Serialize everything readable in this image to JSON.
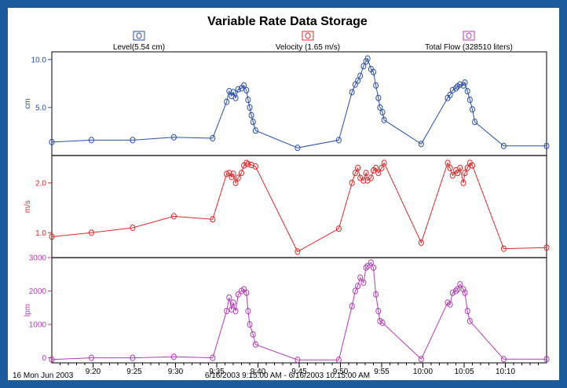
{
  "chart_data": {
    "type": "line",
    "title": "Variable Rate Data Storage",
    "x_tick_labels": [
      "9:20",
      "9:25",
      "9:30",
      "9:35",
      "9:40",
      "9:45",
      "9:50",
      "9:55",
      "10:00",
      "10:05",
      "10:10"
    ],
    "footer_left": "16 Mon Jun 2003",
    "footer_center": "6/16/2003 9:15:00 AM - 6/16/2003 10:15:00 AM",
    "grid": false,
    "panels": [
      {
        "name": "Level",
        "legend": "Level(5.54 cm)",
        "ylabel": "cm",
        "color": "#2a4ea6",
        "yticks": [
          5.0,
          10.0
        ],
        "ytick_labels": [
          "5.0",
          "10.0"
        ],
        "ylim": [
          0,
          10.8
        ],
        "points": [
          [
            15.0,
            1.4
          ],
          [
            19.8,
            1.6
          ],
          [
            24.8,
            1.6
          ],
          [
            29.8,
            1.9
          ],
          [
            34.5,
            1.8
          ],
          [
            36.2,
            5.6
          ],
          [
            36.5,
            6.7
          ],
          [
            36.8,
            6.2
          ],
          [
            37.0,
            6.6
          ],
          [
            37.3,
            6.0
          ],
          [
            37.6,
            6.9
          ],
          [
            38.0,
            7.0
          ],
          [
            38.3,
            7.3
          ],
          [
            38.6,
            6.8
          ],
          [
            38.8,
            5.8
          ],
          [
            39.0,
            5.0
          ],
          [
            39.2,
            4.2
          ],
          [
            39.4,
            3.5
          ],
          [
            39.7,
            2.6
          ],
          [
            44.8,
            0.8
          ],
          [
            49.8,
            1.6
          ],
          [
            51.4,
            6.6
          ],
          [
            51.8,
            7.4
          ],
          [
            52.1,
            7.8
          ],
          [
            52.4,
            8.3
          ],
          [
            52.8,
            9.3
          ],
          [
            53.1,
            9.8
          ],
          [
            53.3,
            10.1
          ],
          [
            53.7,
            9.0
          ],
          [
            54.0,
            8.7
          ],
          [
            54.3,
            7.3
          ],
          [
            54.6,
            6.0
          ],
          [
            54.8,
            5.0
          ],
          [
            55.1,
            4.5
          ],
          [
            55.3,
            3.7
          ],
          [
            59.8,
            1.2
          ],
          [
            63.0,
            6.0
          ],
          [
            63.3,
            6.3
          ],
          [
            63.6,
            6.8
          ],
          [
            64.0,
            7.0
          ],
          [
            64.2,
            7.2
          ],
          [
            64.5,
            7.4
          ],
          [
            64.9,
            7.3
          ],
          [
            65.1,
            7.6
          ],
          [
            65.4,
            6.7
          ],
          [
            65.7,
            5.8
          ],
          [
            66.0,
            4.8
          ],
          [
            66.3,
            3.5
          ],
          [
            69.8,
            1.0
          ],
          [
            75.0,
            1.0
          ]
        ]
      },
      {
        "name": "Velocity",
        "legend": "Velocity (1.65 m/s)",
        "ylabel": "m/s",
        "color": "#e0282a",
        "yticks": [
          1.0,
          2.0
        ],
        "ytick_labels": [
          "1.0",
          "2.0"
        ],
        "ylim": [
          0.5,
          2.55
        ],
        "points": [
          [
            15.0,
            0.92
          ],
          [
            19.8,
            1.0
          ],
          [
            24.8,
            1.1
          ],
          [
            29.8,
            1.33
          ],
          [
            34.5,
            1.27
          ],
          [
            36.2,
            2.18
          ],
          [
            36.5,
            2.2
          ],
          [
            36.8,
            2.12
          ],
          [
            37.0,
            2.18
          ],
          [
            37.3,
            2.0
          ],
          [
            37.6,
            2.1
          ],
          [
            38.0,
            2.2
          ],
          [
            38.3,
            2.35
          ],
          [
            38.6,
            2.4
          ],
          [
            38.8,
            2.38
          ],
          [
            39.2,
            2.36
          ],
          [
            39.7,
            2.33
          ],
          [
            44.8,
            0.62
          ],
          [
            49.8,
            1.08
          ],
          [
            51.4,
            2.0
          ],
          [
            51.8,
            2.2
          ],
          [
            52.1,
            2.3
          ],
          [
            52.4,
            2.1
          ],
          [
            52.8,
            2.05
          ],
          [
            53.1,
            2.2
          ],
          [
            53.3,
            2.05
          ],
          [
            53.7,
            2.1
          ],
          [
            54.0,
            2.25
          ],
          [
            54.3,
            2.3
          ],
          [
            54.6,
            2.2
          ],
          [
            55.0,
            2.3
          ],
          [
            55.3,
            2.4
          ],
          [
            59.8,
            0.8
          ],
          [
            63.0,
            2.4
          ],
          [
            63.3,
            2.3
          ],
          [
            63.6,
            2.15
          ],
          [
            64.0,
            2.25
          ],
          [
            64.2,
            2.2
          ],
          [
            64.5,
            2.3
          ],
          [
            64.9,
            2.0
          ],
          [
            65.1,
            2.2
          ],
          [
            65.4,
            2.3
          ],
          [
            65.7,
            2.4
          ],
          [
            66.0,
            2.35
          ],
          [
            69.8,
            0.68
          ],
          [
            75.0,
            0.7
          ]
        ]
      },
      {
        "name": "Total Flow",
        "legend": "Total Flow (328510 liters)",
        "ylabel": "lpm",
        "color": "#b43cb4",
        "yticks": [
          0,
          1000,
          2000,
          3000
        ],
        "ytick_labels": [
          "0",
          "1000",
          "2000",
          "3000"
        ],
        "ylim": [
          -150,
          3000
        ],
        "points": [
          [
            15.0,
            -50
          ],
          [
            19.8,
            0
          ],
          [
            24.8,
            0
          ],
          [
            29.8,
            30
          ],
          [
            34.5,
            0
          ],
          [
            36.2,
            1400
          ],
          [
            36.5,
            1800
          ],
          [
            36.8,
            1450
          ],
          [
            37.0,
            1650
          ],
          [
            37.3,
            1400
          ],
          [
            37.6,
            1900
          ],
          [
            38.0,
            2000
          ],
          [
            38.3,
            2050
          ],
          [
            38.6,
            1950
          ],
          [
            38.8,
            1400
          ],
          [
            39.0,
            1000
          ],
          [
            39.4,
            700
          ],
          [
            39.7,
            400
          ],
          [
            44.8,
            -60
          ],
          [
            49.8,
            -60
          ],
          [
            51.4,
            1550
          ],
          [
            51.8,
            2000
          ],
          [
            52.1,
            2150
          ],
          [
            52.4,
            2400
          ],
          [
            52.8,
            2250
          ],
          [
            53.1,
            2700
          ],
          [
            53.3,
            2750
          ],
          [
            53.7,
            2850
          ],
          [
            54.0,
            2700
          ],
          [
            54.3,
            1900
          ],
          [
            54.6,
            1400
          ],
          [
            54.8,
            1100
          ],
          [
            55.1,
            1050
          ],
          [
            59.8,
            -40
          ],
          [
            63.0,
            1650
          ],
          [
            63.3,
            1600
          ],
          [
            63.6,
            1950
          ],
          [
            64.0,
            2000
          ],
          [
            64.2,
            2050
          ],
          [
            64.5,
            2200
          ],
          [
            64.9,
            2050
          ],
          [
            65.1,
            1950
          ],
          [
            65.4,
            1400
          ],
          [
            65.7,
            1100
          ],
          [
            69.8,
            -40
          ],
          [
            75.0,
            -40
          ]
        ]
      }
    ]
  }
}
